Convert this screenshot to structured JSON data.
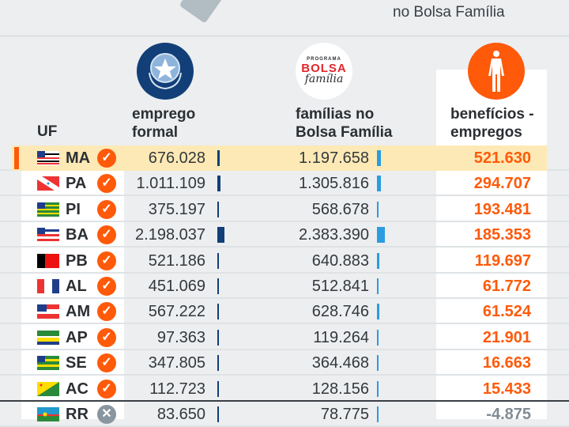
{
  "top_caption": "no Bolsa Família",
  "headers": {
    "uf": "UF",
    "emprego": [
      "emprego",
      "formal"
    ],
    "familias": [
      "famílias no",
      "Bolsa Família"
    ],
    "beneficios": [
      "benefícios -",
      "empregos"
    ],
    "logo_text": [
      "PROGRAMA",
      "BOLSA",
      "família"
    ]
  },
  "colors": {
    "accent": "#fe5a0a",
    "navy": "#123f78",
    "blue": "#2a9de0",
    "highlight": "#fde9b5"
  },
  "rows": [
    {
      "uf": "MA",
      "status": "check",
      "emprego": "676.028",
      "emprego_v": 676028,
      "familias": "1.197.658",
      "familias_v": 1197658,
      "saldo": "521.630",
      "highlight": true
    },
    {
      "uf": "PA",
      "status": "check",
      "emprego": "1.011.109",
      "emprego_v": 1011109,
      "familias": "1.305.816",
      "familias_v": 1305816,
      "saldo": "294.707"
    },
    {
      "uf": "PI",
      "status": "check",
      "emprego": "375.197",
      "emprego_v": 375197,
      "familias": "568.678",
      "familias_v": 568678,
      "saldo": "193.481"
    },
    {
      "uf": "BA",
      "status": "check",
      "emprego": "2.198.037",
      "emprego_v": 2198037,
      "familias": "2.383.390",
      "familias_v": 2383390,
      "saldo": "185.353"
    },
    {
      "uf": "PB",
      "status": "check",
      "emprego": "521.186",
      "emprego_v": 521186,
      "familias": "640.883",
      "familias_v": 640883,
      "saldo": "119.697"
    },
    {
      "uf": "AL",
      "status": "check",
      "emprego": "451.069",
      "emprego_v": 451069,
      "familias": "512.841",
      "familias_v": 512841,
      "saldo": "61.772"
    },
    {
      "uf": "AM",
      "status": "check",
      "emprego": "567.222",
      "emprego_v": 567222,
      "familias": "628.746",
      "familias_v": 628746,
      "saldo": "61.524"
    },
    {
      "uf": "AP",
      "status": "check",
      "emprego": "97.363",
      "emprego_v": 97363,
      "familias": "119.264",
      "familias_v": 119264,
      "saldo": "21.901"
    },
    {
      "uf": "SE",
      "status": "check",
      "emprego": "347.805",
      "emprego_v": 347805,
      "familias": "364.468",
      "familias_v": 364468,
      "saldo": "16.663"
    },
    {
      "uf": "AC",
      "status": "check",
      "emprego": "112.723",
      "emprego_v": 112723,
      "familias": "128.156",
      "familias_v": 128156,
      "saldo": "15.433"
    },
    {
      "uf": "RR",
      "status": "cross",
      "emprego": "83.650",
      "emprego_v": 83650,
      "familias": "78.775",
      "familias_v": 78775,
      "saldo": "-4.875"
    }
  ]
}
